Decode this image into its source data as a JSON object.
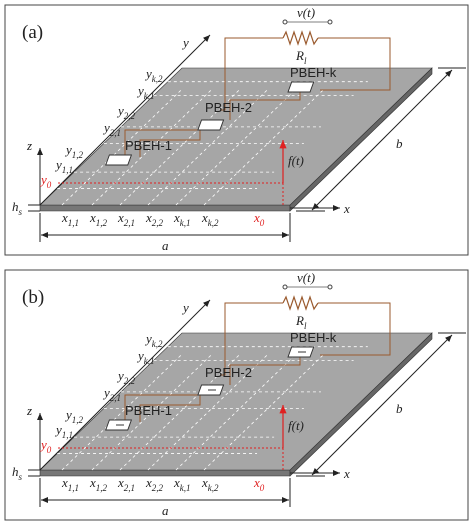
{
  "panels": [
    {
      "label": "(a)",
      "axes": {
        "x": "x",
        "y": "y",
        "z": "z"
      },
      "source": "v(t)",
      "resistor": {
        "base": "R",
        "sub": "l"
      },
      "harvesters": [
        "PBEH-1",
        "PBEH-2",
        "PBEH-k"
      ],
      "y_labels": [
        {
          "base": "y",
          "sub": "k,2"
        },
        {
          "base": "y",
          "sub": "k,1"
        },
        {
          "base": "y",
          "sub": "2,2"
        },
        {
          "base": "y",
          "sub": "2,1"
        },
        {
          "base": "y",
          "sub": "1,2"
        },
        {
          "base": "y",
          "sub": "1,1"
        }
      ],
      "y0": {
        "base": "y",
        "sub": "0"
      },
      "x_labels": [
        {
          "base": "x",
          "sub": "1,1"
        },
        {
          "base": "x",
          "sub": "1,2"
        },
        {
          "base": "x",
          "sub": "2,1"
        },
        {
          "base": "x",
          "sub": "2,2"
        },
        {
          "base": "x",
          "sub": "k,1"
        },
        {
          "base": "x",
          "sub": "k,2"
        }
      ],
      "x0": {
        "base": "x",
        "sub": "0"
      },
      "force": "f(t)",
      "thickness": {
        "base": "h",
        "sub": "s"
      },
      "length": "a",
      "width": "b"
    },
    {
      "label": "(b)",
      "axes": {
        "x": "x",
        "y": "y",
        "z": "z"
      },
      "source": "v(t)",
      "resistor": {
        "base": "R",
        "sub": "l"
      },
      "harvesters": [
        "PBEH-1",
        "PBEH-2",
        "PBEH-k"
      ],
      "y_labels": [
        {
          "base": "y",
          "sub": "k,2"
        },
        {
          "base": "y",
          "sub": "k,1"
        },
        {
          "base": "y",
          "sub": "2,2"
        },
        {
          "base": "y",
          "sub": "2,1"
        },
        {
          "base": "y",
          "sub": "1,2"
        },
        {
          "base": "y",
          "sub": "1,1"
        }
      ],
      "y0": {
        "base": "y",
        "sub": "0"
      },
      "x_labels": [
        {
          "base": "x",
          "sub": "1,1"
        },
        {
          "base": "x",
          "sub": "1,2"
        },
        {
          "base": "x",
          "sub": "2,1"
        },
        {
          "base": "x",
          "sub": "2,2"
        },
        {
          "base": "x",
          "sub": "k,1"
        },
        {
          "base": "x",
          "sub": "k,2"
        }
      ],
      "x0": {
        "base": "x",
        "sub": "0"
      },
      "force": "f(t)",
      "thickness": {
        "base": "h",
        "sub": "s"
      },
      "length": "a",
      "width": "b"
    }
  ]
}
